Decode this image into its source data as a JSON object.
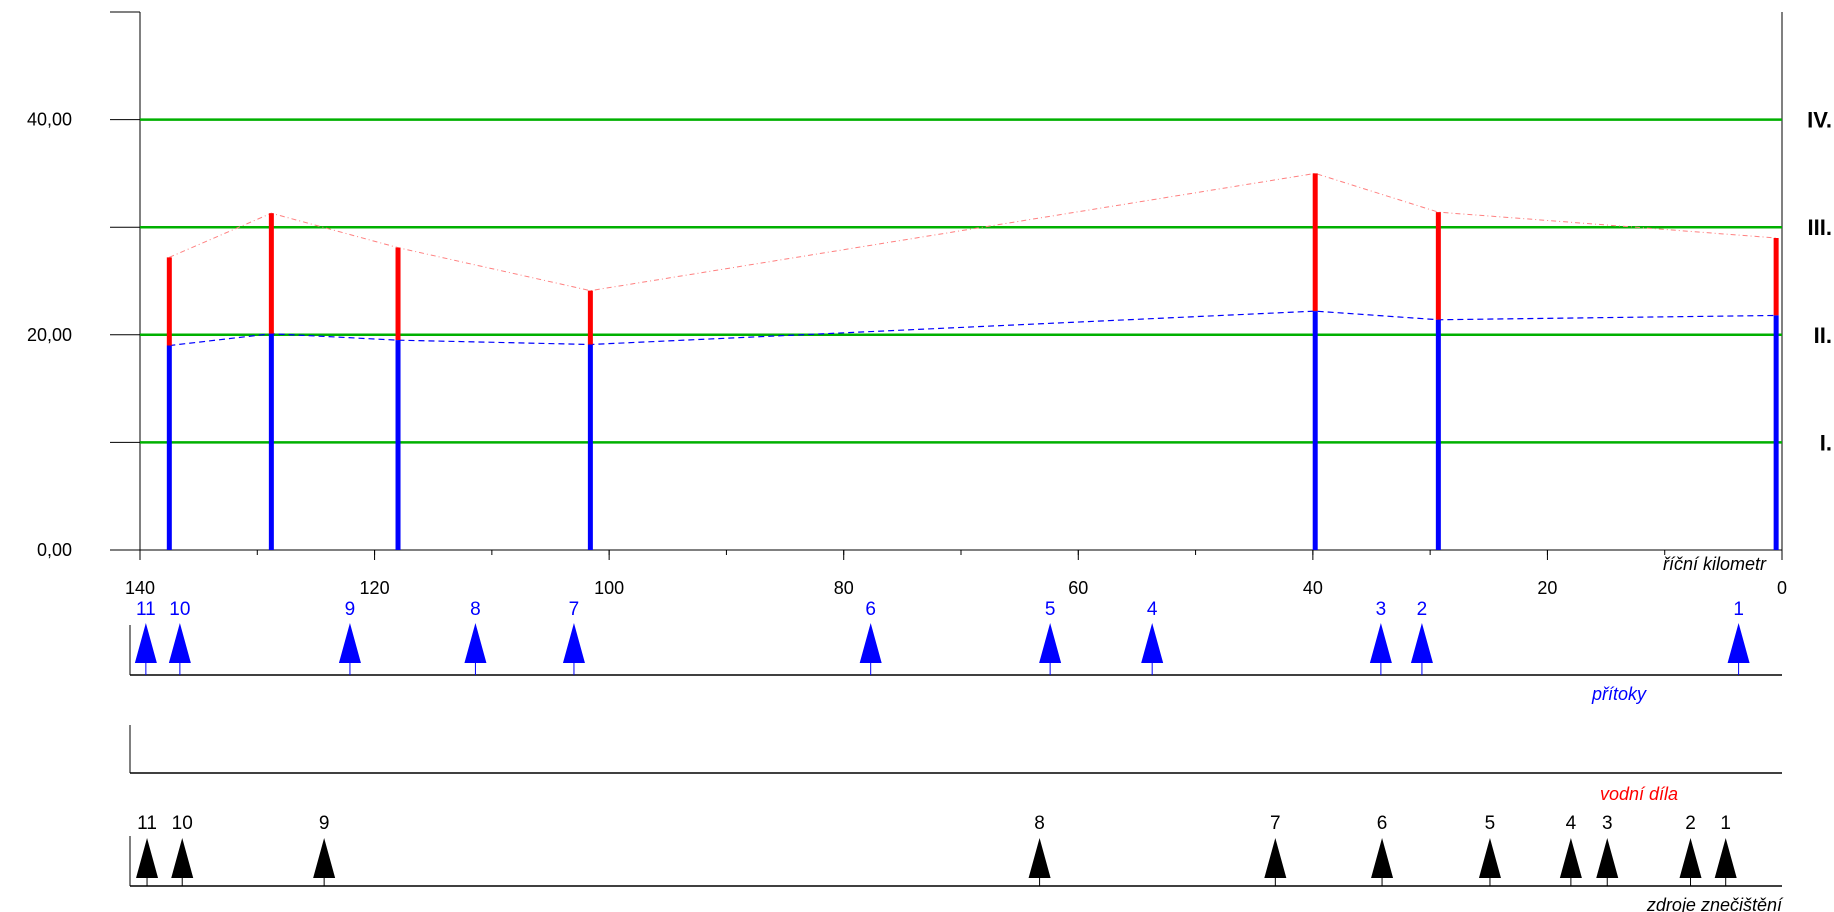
{
  "chart_data": {
    "type": "bar",
    "x_axis": {
      "label": "říční kilometr",
      "range": [
        140,
        0
      ],
      "ticks": [
        140,
        120,
        100,
        80,
        60,
        40,
        20,
        0
      ],
      "tick_labels": [
        "140",
        "120",
        "100",
        "80",
        "60",
        "40",
        "20",
        "0"
      ],
      "minor_tick_step": 10
    },
    "y_axis": {
      "range": [
        0,
        50
      ],
      "ticks": [
        0,
        20,
        40
      ],
      "tick_labels": [
        "0,00",
        "20,00",
        "40,00"
      ],
      "minor_ticks": [
        10,
        30,
        50
      ]
    },
    "class_limits": [
      {
        "label": "I.",
        "value": 10
      },
      {
        "label": "II.",
        "value": 20
      },
      {
        "label": "III.",
        "value": 30
      },
      {
        "label": "IV.",
        "value": 40
      }
    ],
    "profiles": {
      "x": [
        137.5,
        128.8,
        118,
        101.6,
        39.8,
        29.3,
        0.5
      ],
      "series": [
        {
          "kind": "mean",
          "values": [
            19.0,
            20.1,
            19.5,
            19.1,
            22.2,
            21.4,
            21.8
          ]
        },
        {
          "kind": "max",
          "values": [
            27.2,
            31.3,
            28.1,
            24.1,
            35.0,
            31.4,
            29.0
          ]
        }
      ]
    },
    "tributaries": {
      "label": "přítoky",
      "items": [
        {
          "n": "1",
          "km": 3.7
        },
        {
          "n": "2",
          "km": 30.7
        },
        {
          "n": "3",
          "km": 34.2
        },
        {
          "n": "4",
          "km": 53.7
        },
        {
          "n": "5",
          "km": 62.4
        },
        {
          "n": "6",
          "km": 77.7
        },
        {
          "n": "7",
          "km": 103
        },
        {
          "n": "8",
          "km": 111.4
        },
        {
          "n": "9",
          "km": 122.1
        },
        {
          "n": "10",
          "km": 136.6
        },
        {
          "n": "11",
          "km": 139.5
        }
      ]
    },
    "water_works": {
      "label": "vodní díla",
      "items": []
    },
    "pollution_sources": {
      "label": "zdroje znečištění",
      "items": [
        {
          "n": "1",
          "km": 4.8
        },
        {
          "n": "2",
          "km": 7.8
        },
        {
          "n": "3",
          "km": 14.9
        },
        {
          "n": "4",
          "km": 18.0
        },
        {
          "n": "5",
          "km": 24.9
        },
        {
          "n": "6",
          "km": 34.1
        },
        {
          "n": "7",
          "km": 43.2
        },
        {
          "n": "8",
          "km": 63.3
        },
        {
          "n": "9",
          "km": 124.3
        },
        {
          "n": "10",
          "km": 136.4
        },
        {
          "n": "11",
          "km": 139.4
        }
      ]
    }
  },
  "colors": {
    "mean": "#0000ff",
    "max": "#ff0000",
    "class_line": "#00b000",
    "tributary": "#0000ff",
    "water_works": "#ff0000",
    "pollution": "#000000",
    "axis": "#000000"
  }
}
